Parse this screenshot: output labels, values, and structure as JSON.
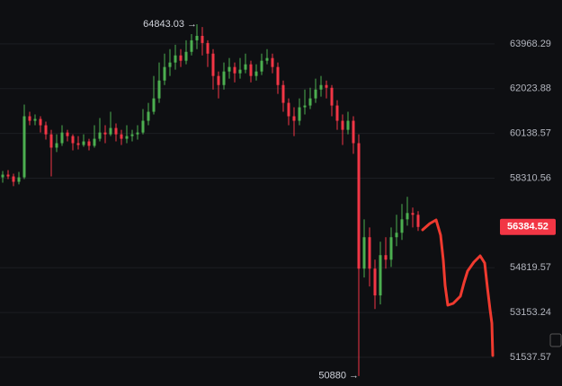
{
  "chart_data": {
    "type": "candlestick",
    "up_color": "#4caf50",
    "down_color": "#f23645",
    "yscale": "log",
    "grid": true,
    "ylim": [
      50529,
      65933
    ],
    "yticks": [
      63968.29,
      62023.88,
      60138.57,
      58310.56,
      54819.57,
      53153.24,
      51537.57
    ],
    "open": [
      58346,
      58455,
      58382,
      58168,
      58346,
      60855,
      60666,
      60742,
      60478,
      60101,
      59553,
      59736,
      60176,
      60028,
      59736,
      59662,
      59809,
      59626,
      59918,
      60176,
      60101,
      60365,
      60101,
      59918,
      60028,
      60101,
      60176,
      60666,
      61043,
      61609,
      62373,
      62957,
      63151,
      63462,
      63229,
      63618,
      64125,
      64322,
      64007,
      63540,
      62568,
      62179,
      62762,
      62957,
      62684,
      62840,
      63073,
      62568,
      62762,
      63229,
      63346,
      62957,
      62179,
      61420,
      60855,
      60666,
      61232,
      61307,
      61609,
      61986,
      62179,
      62062,
      61307,
      60666,
      60289,
      60666,
      59736,
      54787,
      55987,
      54787,
      53785,
      55299,
      55126,
      55987,
      56159,
      56681,
      56929,
      56858
    ],
    "high": [
      58602,
      58638,
      58492,
      58565,
      61345,
      61043,
      60930,
      60855,
      60629,
      60289,
      60101,
      60478,
      60289,
      60101,
      60028,
      60101,
      59918,
      60478,
      60779,
      60478,
      61043,
      60553,
      60289,
      60478,
      60289,
      60478,
      61157,
      61420,
      62568,
      63151,
      63540,
      63735,
      63929,
      63735,
      64125,
      64400,
      64843.03,
      64715,
      64125,
      63735,
      62762,
      63151,
      63346,
      63151,
      63346,
      63540,
      63229,
      63073,
      63540,
      63735,
      63540,
      63151,
      62373,
      61609,
      61232,
      61609,
      61986,
      62062,
      62451,
      62568,
      62373,
      62179,
      61533,
      60930,
      61043,
      60855,
      60101,
      56681,
      56366,
      55126,
      55815,
      55987,
      56366,
      56858,
      57283,
      57566,
      57141,
      57000
    ],
    "low": [
      58133,
      58275,
      57991,
      58062,
      58275,
      60478,
      60478,
      60176,
      59882,
      58382,
      59370,
      59626,
      59809,
      59443,
      59480,
      59589,
      59443,
      59553,
      59809,
      59736,
      60028,
      59809,
      59662,
      59736,
      59809,
      59882,
      60101,
      60478,
      60930,
      61420,
      62179,
      62568,
      62840,
      62957,
      63073,
      63462,
      63735,
      63462,
      62957,
      61986,
      61609,
      61986,
      62451,
      62295,
      62451,
      62684,
      62295,
      62373,
      62607,
      63073,
      62684,
      61798,
      61043,
      60478,
      60028,
      60478,
      60930,
      61157,
      61420,
      61684,
      61609,
      60855,
      60289,
      59662,
      60101,
      59297,
      50880,
      54453,
      54119,
      53284,
      53451,
      54787,
      54850,
      55643,
      55884,
      56435,
      56366,
      56228
    ],
    "close": [
      58455,
      58382,
      58168,
      58346,
      60855,
      60666,
      60742,
      60478,
      60101,
      59553,
      59736,
      60176,
      60028,
      59736,
      59662,
      59809,
      59626,
      59918,
      60176,
      60101,
      60365,
      60101,
      59918,
      60028,
      60101,
      60176,
      60666,
      61043,
      61609,
      62373,
      62957,
      63151,
      63462,
      63229,
      63618,
      64125,
      64322,
      64007,
      63540,
      62568,
      62179,
      62762,
      62957,
      62684,
      62840,
      63073,
      62568,
      62762,
      63229,
      63346,
      62957,
      62179,
      61420,
      60855,
      60666,
      61232,
      61307,
      61609,
      61986,
      62179,
      62062,
      61307,
      60666,
      60289,
      60666,
      59736,
      54787,
      55987,
      54787,
      53785,
      55299,
      55126,
      55987,
      56159,
      56681,
      56929,
      56858,
      56384.52
    ]
  }
}
